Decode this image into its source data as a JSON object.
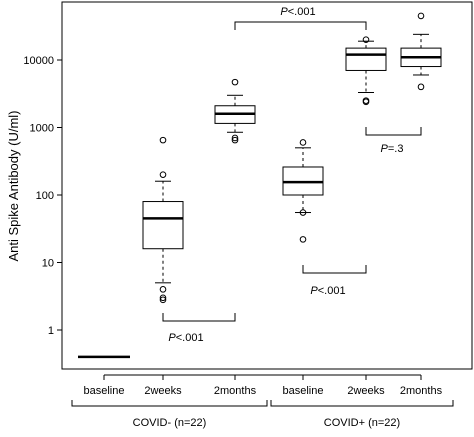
{
  "chart_data": {
    "type": "box",
    "ylabel": "Anti Spike Antibody (U/ml)",
    "yscale": "log",
    "ylim": [
      0.3,
      50000
    ],
    "yticks": [
      1,
      10,
      100,
      1000,
      10000
    ],
    "ytick_labels": [
      "1",
      "10",
      "100",
      "1000",
      "10000"
    ],
    "categories": [
      "baseline",
      "2weeks",
      "2months",
      "baseline",
      "2weeks",
      "2months"
    ],
    "groups": [
      {
        "label": "COVID- (n=22)",
        "categories": [
          0,
          1,
          2
        ]
      },
      {
        "label": "COVID+ (n=22)",
        "categories": [
          3,
          4,
          5
        ]
      }
    ],
    "boxes": [
      {
        "category": "baseline",
        "group": "COVID- (n=22)",
        "median": 0.4,
        "q1": 0.4,
        "q3": 0.4,
        "whisker_low": 0.4,
        "whisker_high": 0.4,
        "outliers": []
      },
      {
        "category": "2weeks",
        "group": "COVID- (n=22)",
        "median": 45,
        "q1": 16,
        "q3": 80,
        "whisker_low": 5,
        "whisker_high": 160,
        "outliers": [
          200,
          650,
          4,
          3,
          2.8
        ]
      },
      {
        "category": "2months",
        "group": "COVID- (n=22)",
        "median": 1600,
        "q1": 1150,
        "q3": 2100,
        "whisker_low": 850,
        "whisker_high": 3000,
        "outliers": [
          4700,
          700,
          650
        ]
      },
      {
        "category": "baseline",
        "group": "COVID+ (n=22)",
        "median": 155,
        "q1": 100,
        "q3": 260,
        "whisker_low": 55,
        "whisker_high": 500,
        "outliers": [
          600,
          55,
          22
        ]
      },
      {
        "category": "2weeks",
        "group": "COVID+ (n=22)",
        "median": 12000,
        "q1": 7000,
        "q3": 15000,
        "whisker_low": 3300,
        "whisker_high": 19000,
        "outliers": [
          20000,
          2500,
          2400
        ]
      },
      {
        "category": "2months",
        "group": "COVID+ (n=22)",
        "median": 11000,
        "q1": 8000,
        "q3": 15000,
        "whisker_low": 6000,
        "whisker_high": 24000,
        "outliers": [
          45000,
          4000
        ]
      }
    ],
    "comparisons": [
      {
        "label": "P<.001",
        "between": [
          "2weeks",
          "2months"
        ],
        "group": "COVID- (n=22)"
      },
      {
        "label": "P<.001",
        "between": [
          "baseline",
          "2weeks"
        ],
        "group": "COVID+ (n=22)"
      },
      {
        "label": "P=.3",
        "between": [
          "2weeks",
          "2months"
        ],
        "group": "COVID+ (n=22)"
      },
      {
        "label": "P<.001",
        "between": [
          "2months COVID-",
          "2weeks COVID+"
        ]
      }
    ]
  }
}
